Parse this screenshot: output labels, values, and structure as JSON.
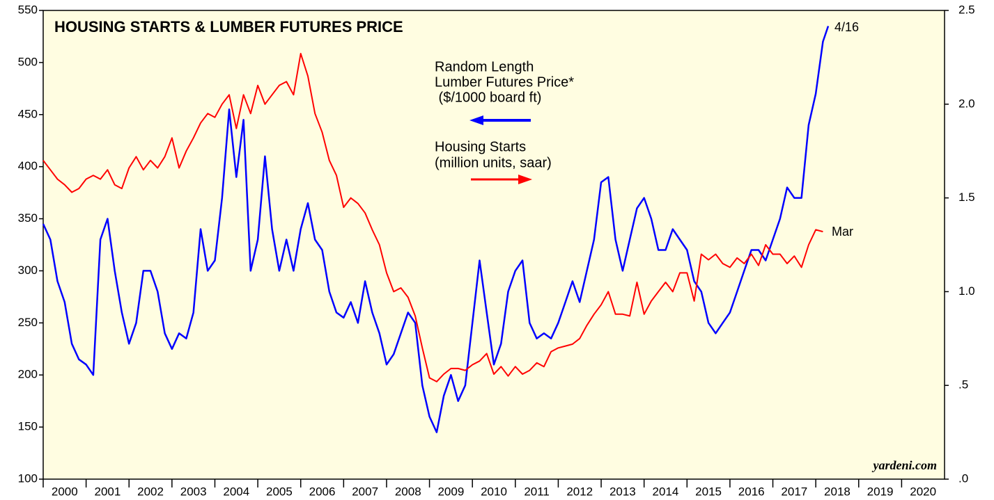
{
  "chart_data": {
    "type": "line",
    "title": "HOUSING STARTS & LUMBER FUTURES PRICE",
    "annotations": [
      "Random Length",
      "Lumber Futures Price*",
      " ($/1000 board ft)",
      "Housing Starts",
      "(million units, saar)",
      "4/16",
      "Mar",
      "yardeni.com"
    ],
    "x": [
      2000.0,
      2000.167,
      2000.333,
      2000.5,
      2000.667,
      2000.833,
      2001.0,
      2001.167,
      2001.333,
      2001.5,
      2001.667,
      2001.833,
      2002.0,
      2002.167,
      2002.333,
      2002.5,
      2002.667,
      2002.833,
      2003.0,
      2003.167,
      2003.333,
      2003.5,
      2003.667,
      2003.833,
      2004.0,
      2004.167,
      2004.333,
      2004.5,
      2004.667,
      2004.833,
      2005.0,
      2005.167,
      2005.333,
      2005.5,
      2005.667,
      2005.833,
      2006.0,
      2006.167,
      2006.333,
      2006.5,
      2006.667,
      2006.833,
      2007.0,
      2007.167,
      2007.333,
      2007.5,
      2007.667,
      2007.833,
      2008.0,
      2008.167,
      2008.333,
      2008.5,
      2008.667,
      2008.833,
      2009.0,
      2009.167,
      2009.333,
      2009.5,
      2009.667,
      2009.833,
      2010.0,
      2010.167,
      2010.333,
      2010.5,
      2010.667,
      2010.833,
      2011.0,
      2011.167,
      2011.333,
      2011.5,
      2011.667,
      2011.833,
      2012.0,
      2012.167,
      2012.333,
      2012.5,
      2012.667,
      2012.833,
      2013.0,
      2013.167,
      2013.333,
      2013.5,
      2013.667,
      2013.833,
      2014.0,
      2014.167,
      2014.333,
      2014.5,
      2014.667,
      2014.833,
      2015.0,
      2015.167,
      2015.333,
      2015.5,
      2015.667,
      2015.833,
      2016.0,
      2016.167,
      2016.333,
      2016.5,
      2016.667,
      2016.833,
      2017.0,
      2017.167,
      2017.333,
      2017.5,
      2017.667,
      2017.833,
      2018.0,
      2018.167,
      2018.29
    ],
    "series": [
      {
        "name": "Lumber Futures Price",
        "color": "#0000ff",
        "axis": "y",
        "values": [
          345,
          330,
          290,
          270,
          230,
          215,
          210,
          200,
          330,
          350,
          300,
          260,
          230,
          250,
          300,
          300,
          280,
          240,
          225,
          240,
          235,
          260,
          340,
          300,
          310,
          370,
          455,
          390,
          445,
          300,
          330,
          410,
          340,
          300,
          330,
          300,
          340,
          365,
          330,
          320,
          280,
          260,
          255,
          270,
          250,
          290,
          260,
          240,
          210,
          220,
          240,
          260,
          250,
          190,
          160,
          145,
          180,
          200,
          175,
          190,
          250,
          310,
          260,
          210,
          230,
          280,
          300,
          310,
          250,
          235,
          240,
          235,
          250,
          270,
          290,
          270,
          300,
          330,
          385,
          390,
          330,
          300,
          330,
          360,
          370,
          350,
          320,
          320,
          340,
          330,
          320,
          290,
          280,
          250,
          240,
          250,
          260,
          280,
          300,
          320,
          320,
          310,
          330,
          350,
          380,
          370,
          370,
          440,
          470,
          520,
          535
        ]
      },
      {
        "name": "Housing Starts",
        "color": "#ff0000",
        "axis": "y2",
        "values": [
          1.7,
          1.65,
          1.6,
          1.57,
          1.53,
          1.55,
          1.6,
          1.62,
          1.6,
          1.65,
          1.57,
          1.55,
          1.66,
          1.72,
          1.65,
          1.7,
          1.66,
          1.72,
          1.82,
          1.66,
          1.75,
          1.82,
          1.9,
          1.95,
          1.93,
          2.0,
          2.05,
          1.87,
          2.05,
          1.95,
          2.1,
          2.0,
          2.05,
          2.1,
          2.12,
          2.05,
          2.27,
          2.15,
          1.95,
          1.85,
          1.7,
          1.62,
          1.45,
          1.5,
          1.47,
          1.42,
          1.33,
          1.25,
          1.1,
          1.0,
          1.02,
          0.97,
          0.87,
          0.7,
          0.54,
          0.52,
          0.56,
          0.59,
          0.59,
          0.58,
          0.61,
          0.63,
          0.67,
          0.56,
          0.6,
          0.55,
          0.6,
          0.56,
          0.58,
          0.62,
          0.6,
          0.68,
          0.7,
          0.71,
          0.72,
          0.75,
          0.82,
          0.88,
          0.93,
          1.0,
          0.88,
          0.88,
          0.87,
          1.05,
          0.88,
          0.95,
          1.0,
          1.05,
          1.0,
          1.1,
          1.1,
          0.95,
          1.2,
          1.17,
          1.2,
          1.15,
          1.13,
          1.18,
          1.15,
          1.2,
          1.14,
          1.25,
          1.2,
          1.2,
          1.15,
          1.19,
          1.13,
          1.25,
          1.33,
          1.32,
          null
        ]
      }
    ],
    "xlim": [
      2000,
      2021
    ],
    "xticks": [
      2000,
      2001,
      2002,
      2003,
      2004,
      2005,
      2006,
      2007,
      2008,
      2009,
      2010,
      2011,
      2012,
      2013,
      2014,
      2015,
      2016,
      2017,
      2018,
      2019,
      2020
    ],
    "ylim": [
      100,
      550
    ],
    "yticks": [
      100,
      150,
      200,
      250,
      300,
      350,
      400,
      450,
      500,
      550
    ],
    "y2lim": [
      0,
      2.5
    ],
    "y2ticks": [
      {
        "value": 0,
        "label": ".0"
      },
      {
        "value": 0.5,
        "label": ".5"
      },
      {
        "value": 1,
        "label": "1.0"
      },
      {
        "value": 1.5,
        "label": "1.5"
      },
      {
        "value": 2,
        "label": "2.0"
      },
      {
        "value": 2.5,
        "label": "2.5"
      }
    ]
  }
}
